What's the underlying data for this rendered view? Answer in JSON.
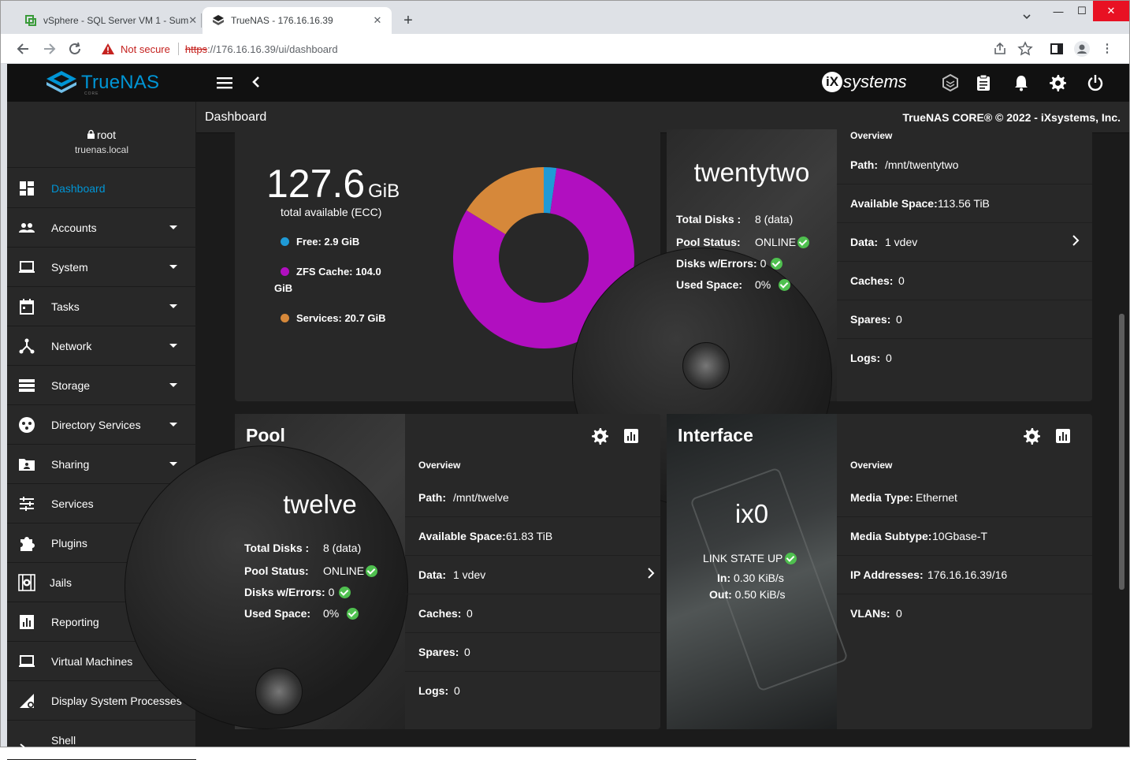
{
  "browser": {
    "tabs": [
      {
        "title": "vSphere - SQL Server VM 1 - Sum",
        "active": false
      },
      {
        "title": "TrueNAS - 176.16.16.39",
        "active": true
      }
    ],
    "security_label": "Not secure",
    "url_scheme": "https",
    "url_rest": "://176.16.16.39/ui/dashboard"
  },
  "app": {
    "brand": "TrueNAS",
    "brand_sub": "CORE",
    "vendor": "systems",
    "page_title": "Dashboard",
    "copyright": "TrueNAS CORE® © 2022 - iXsystems, Inc."
  },
  "user": {
    "name": "root",
    "host": "truenas.local"
  },
  "sidebar": {
    "items": [
      {
        "label": "Dashboard",
        "icon": "dashboard-icon",
        "expandable": false,
        "active": true
      },
      {
        "label": "Accounts",
        "icon": "accounts-icon",
        "expandable": true
      },
      {
        "label": "System",
        "icon": "system-icon",
        "expandable": true
      },
      {
        "label": "Tasks",
        "icon": "tasks-icon",
        "expandable": true
      },
      {
        "label": "Network",
        "icon": "network-icon",
        "expandable": true
      },
      {
        "label": "Storage",
        "icon": "storage-icon",
        "expandable": true
      },
      {
        "label": "Directory Services",
        "icon": "directory-services-icon",
        "expandable": true
      },
      {
        "label": "Sharing",
        "icon": "sharing-icon",
        "expandable": true
      },
      {
        "label": "Services",
        "icon": "services-icon",
        "expandable": false
      },
      {
        "label": "Plugins",
        "icon": "plugins-icon",
        "expandable": false
      },
      {
        "label": "Jails",
        "icon": "jails-icon",
        "expandable": false
      },
      {
        "label": "Reporting",
        "icon": "reporting-icon",
        "expandable": false
      },
      {
        "label": "Virtual Machines",
        "icon": "virtual-machines-icon",
        "expandable": false
      },
      {
        "label": "Display System Processes",
        "icon": "processes-icon",
        "expandable": false
      },
      {
        "label": "Shell",
        "icon": "shell-icon",
        "expandable": false
      }
    ]
  },
  "memory": {
    "total_value": "127.6",
    "total_unit": "GiB",
    "total_label": "total available (ECC)",
    "legend": [
      {
        "label": "Free:",
        "value": "2.9 GiB",
        "color": "#1f9ad6"
      },
      {
        "label": "ZFS Cache:",
        "value": "104.0 GiB",
        "color": "#b10fc0"
      },
      {
        "label": "Services:",
        "value": "20.7 GiB",
        "color": "#d6883a"
      }
    ]
  },
  "chart_data": {
    "type": "pie",
    "categories": [
      "Free",
      "ZFS Cache",
      "Services"
    ],
    "values": [
      2.9,
      104.0,
      20.7
    ],
    "colors": [
      "#1f9ad6",
      "#b10fc0",
      "#d6883a"
    ],
    "unit": "GiB",
    "donut": true
  },
  "pool_twentytwo": {
    "name": "twentytwo",
    "total_disks_label": "Total Disks :",
    "total_disks": "8 (data)",
    "status_label": "Pool Status:",
    "status": "ONLINE",
    "errors_label": "Disks w/Errors:",
    "errors": "0",
    "used_label": "Used Space:",
    "used": "0%",
    "overview_label": "Overview",
    "rows": [
      {
        "key": "Path:",
        "value": "/mnt/twentytwo"
      },
      {
        "key": "Available Space:",
        "value": "113.56 TiB"
      },
      {
        "key": "Data:",
        "value": "1 vdev"
      },
      {
        "key": "Caches:",
        "value": "0"
      },
      {
        "key": "Spares:",
        "value": "0"
      },
      {
        "key": "Logs:",
        "value": "0"
      }
    ]
  },
  "pool_twelve": {
    "title": "Pool",
    "name": "twelve",
    "total_disks_label": "Total Disks :",
    "total_disks": "8 (data)",
    "status_label": "Pool Status:",
    "status": "ONLINE",
    "errors_label": "Disks w/Errors:",
    "errors": "0",
    "used_label": "Used Space:",
    "used": "0%",
    "overview_label": "Overview",
    "rows": [
      {
        "key": "Path:",
        "value": "/mnt/twelve"
      },
      {
        "key": "Available Space:",
        "value": "61.83 TiB"
      },
      {
        "key": "Data:",
        "value": "1 vdev"
      },
      {
        "key": "Caches:",
        "value": "0"
      },
      {
        "key": "Spares:",
        "value": "0"
      },
      {
        "key": "Logs:",
        "value": "0"
      }
    ]
  },
  "interface": {
    "title": "Interface",
    "name": "ix0",
    "link_state": "LINK STATE UP",
    "in_label": "In:",
    "in_value": "0.30 KiB/s",
    "out_label": "Out:",
    "out_value": "0.50 KiB/s",
    "overview_label": "Overview",
    "rows": [
      {
        "key": "Media Type:",
        "value": "Ethernet"
      },
      {
        "key": "Media Subtype:",
        "value": "10Gbase-T"
      },
      {
        "key": "IP Addresses:",
        "value": "176.16.16.39/16"
      },
      {
        "key": "VLANs:",
        "value": "0"
      }
    ]
  }
}
